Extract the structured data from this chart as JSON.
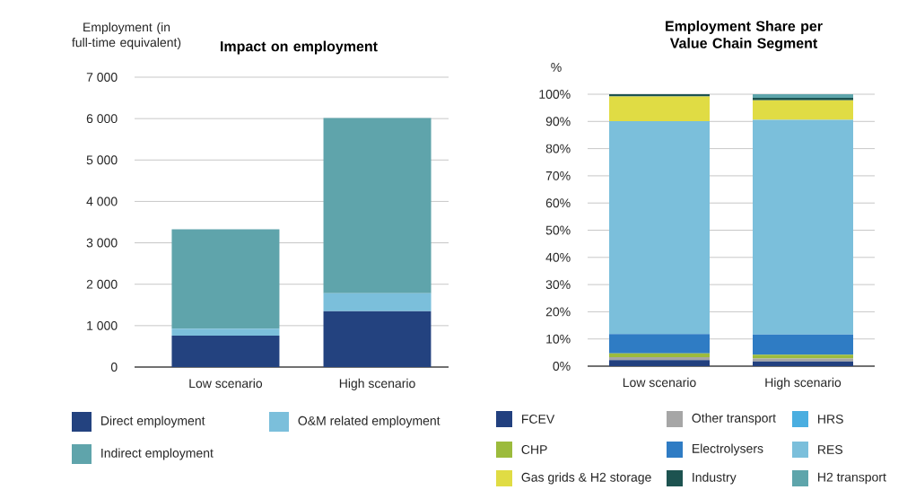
{
  "chart_data": [
    {
      "type": "bar",
      "title": "Impact on employment",
      "ylabel": "Employment (in full-time equivalent)",
      "stacked": true,
      "categories": [
        "Low scenario",
        "High scenario"
      ],
      "series": [
        {
          "name": "Direct employment",
          "color": "#23427f",
          "values": [
            760,
            1350
          ]
        },
        {
          "name": "O&M related employment",
          "color": "#7bbfdb",
          "values": [
            165,
            435
          ]
        },
        {
          "name": "Indirect employment",
          "color": "#5fa4ab",
          "values": [
            2400,
            4230
          ]
        }
      ],
      "ylim": [
        0,
        7000
      ],
      "yticks": [
        0,
        {
          "value": 1000,
          "label": "1 000"
        },
        {
          "value": 2000,
          "label": "2 000"
        },
        {
          "value": 3000,
          "label": "3 000"
        },
        {
          "value": 4000,
          "label": "4 000"
        },
        {
          "value": 5000,
          "label": "5 000"
        },
        {
          "value": 6000,
          "label": "6 000"
        },
        {
          "value": 7000,
          "label": "7 000"
        }
      ],
      "grid": "y",
      "legend": "bottom"
    },
    {
      "type": "bar",
      "title": "Employment Share per Value Chain Segment",
      "ylabel": "%",
      "stacked": true,
      "categories": [
        "Low scenario",
        "High scenario"
      ],
      "series": [
        {
          "name": "FCEV",
          "color": "#22407f",
          "values": [
            2.2,
            1.7
          ]
        },
        {
          "name": "Other transport",
          "color": "#a6a6a6",
          "values": [
            1.1,
            1.1
          ]
        },
        {
          "name": "CHP",
          "color": "#9cbb3c",
          "values": [
            1.4,
            1.4
          ]
        },
        {
          "name": "HRS",
          "color": "#4aaee0",
          "values": [
            0,
            0
          ]
        },
        {
          "name": "Electrolysers",
          "color": "#2f7cc4",
          "values": [
            7.1,
            7.4
          ]
        },
        {
          "name": "RES",
          "color": "#7bbfdb",
          "values": [
            78.3,
            79.0
          ]
        },
        {
          "name": "Gas grids & H2 storage",
          "color": "#e0dc44",
          "values": [
            9.1,
            7.2
          ]
        },
        {
          "name": "Industry",
          "color": "#1d5350",
          "values": [
            0.8,
            0.9
          ]
        },
        {
          "name": "H2 transport",
          "color": "#5ea5ab",
          "values": [
            0,
            1.3
          ]
        }
      ],
      "ylim": [
        0,
        100
      ],
      "yticks": [
        {
          "value": 0,
          "label": "0%"
        },
        {
          "value": 10,
          "label": "10%"
        },
        {
          "value": 20,
          "label": "20%"
        },
        {
          "value": 30,
          "label": "30%"
        },
        {
          "value": 40,
          "label": "40%"
        },
        {
          "value": 50,
          "label": "50%"
        },
        {
          "value": 60,
          "label": "60%"
        },
        {
          "value": 70,
          "label": "70%"
        },
        {
          "value": 80,
          "label": "80%"
        },
        {
          "value": 90,
          "label": "90%"
        },
        {
          "value": 100,
          "label": "100%"
        }
      ],
      "grid": "y",
      "legend": "bottom"
    }
  ]
}
